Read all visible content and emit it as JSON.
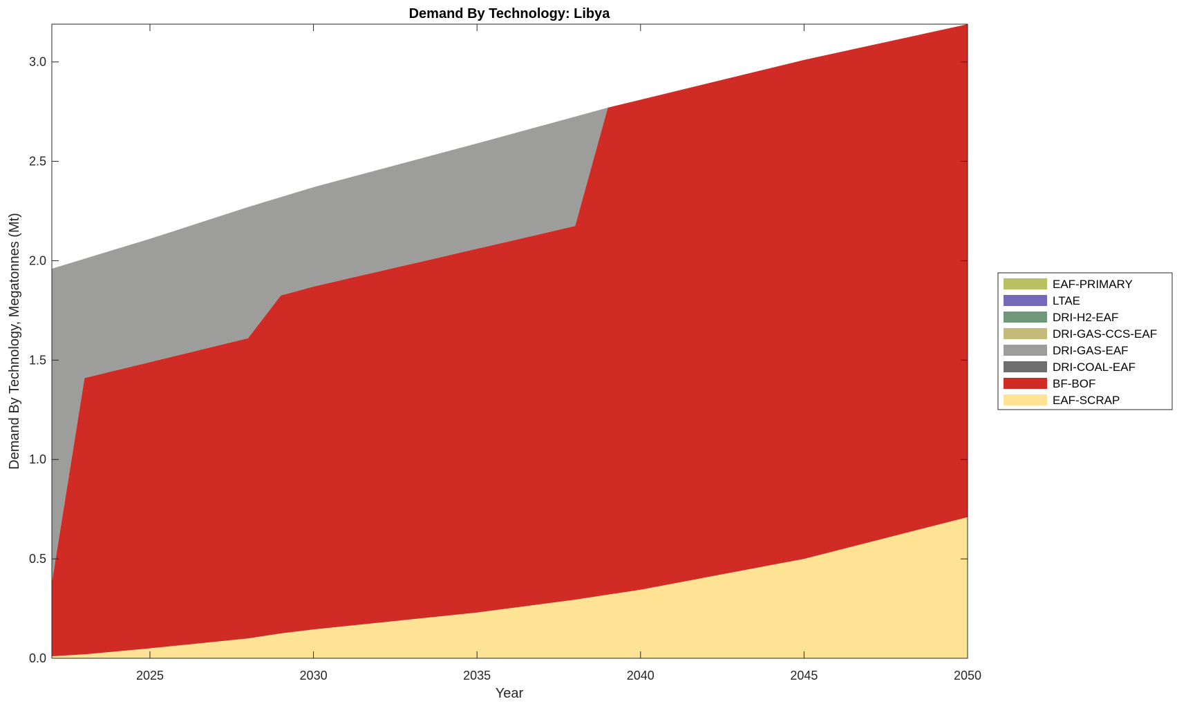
{
  "chart_data": {
    "type": "area",
    "stacked": true,
    "title": "Demand By Technology: Libya",
    "xlabel": "Year",
    "ylabel": "Demand By Technology, Megatonnes (Mt)",
    "xlim": [
      2022,
      2050
    ],
    "ylim": [
      0,
      3.19
    ],
    "xticks": [
      2025,
      2030,
      2035,
      2040,
      2045,
      2050
    ],
    "xtick_labels": [
      "2025",
      "2030",
      "2035",
      "2040",
      "2045",
      "2050"
    ],
    "yticks": [
      0,
      0.5,
      1.0,
      1.5,
      2.0,
      2.5,
      3.0
    ],
    "ytick_labels": [
      "0.0",
      "0.5",
      "1.0",
      "1.5",
      "2.0",
      "2.5",
      "3.0"
    ],
    "grid": false,
    "legend_position": "right",
    "x": [
      2022,
      2023,
      2025,
      2028,
      2029,
      2030,
      2035,
      2038,
      2039,
      2040,
      2045,
      2050
    ],
    "series": [
      {
        "name": "EAF-SCRAP",
        "color": "#fde393",
        "values": [
          0.01,
          0.02,
          0.05,
          0.1,
          0.125,
          0.145,
          0.23,
          0.295,
          0.32,
          0.345,
          0.5,
          0.71
        ]
      },
      {
        "name": "BF-BOF",
        "color": "#d12b25",
        "values": [
          0.37,
          1.39,
          1.44,
          1.51,
          1.7,
          1.725,
          1.83,
          1.88,
          2.45,
          2.465,
          2.51,
          2.48
        ]
      },
      {
        "name": "DRI-COAL-EAF",
        "color": "#6e6e6e",
        "values": [
          0,
          0,
          0,
          0,
          0,
          0,
          0,
          0,
          0,
          0,
          0,
          0
        ]
      },
      {
        "name": "DRI-GAS-EAF",
        "color": "#9d9d9b",
        "values": [
          1.58,
          0.6,
          0.62,
          0.66,
          0.495,
          0.5,
          0.53,
          0.55,
          0,
          0,
          0,
          0
        ]
      },
      {
        "name": "DRI-GAS-CCS-EAF",
        "color": "#c4bb7b",
        "values": [
          0,
          0,
          0,
          0,
          0,
          0,
          0,
          0,
          0,
          0,
          0,
          0
        ]
      },
      {
        "name": "DRI-H2-EAF",
        "color": "#6f977a",
        "values": [
          0,
          0,
          0,
          0,
          0,
          0,
          0,
          0,
          0,
          0,
          0,
          0
        ]
      },
      {
        "name": "LTAE",
        "color": "#7468bb",
        "values": [
          0,
          0,
          0,
          0,
          0,
          0,
          0,
          0,
          0,
          0,
          0,
          0
        ]
      },
      {
        "name": "EAF-PRIMARY",
        "color": "#b9c062",
        "values": [
          0,
          0,
          0,
          0,
          0,
          0,
          0,
          0,
          0,
          0,
          0,
          0
        ]
      }
    ],
    "legend_order": [
      "EAF-PRIMARY",
      "LTAE",
      "DRI-H2-EAF",
      "DRI-GAS-CCS-EAF",
      "DRI-GAS-EAF",
      "DRI-COAL-EAF",
      "BF-BOF",
      "EAF-SCRAP"
    ]
  }
}
